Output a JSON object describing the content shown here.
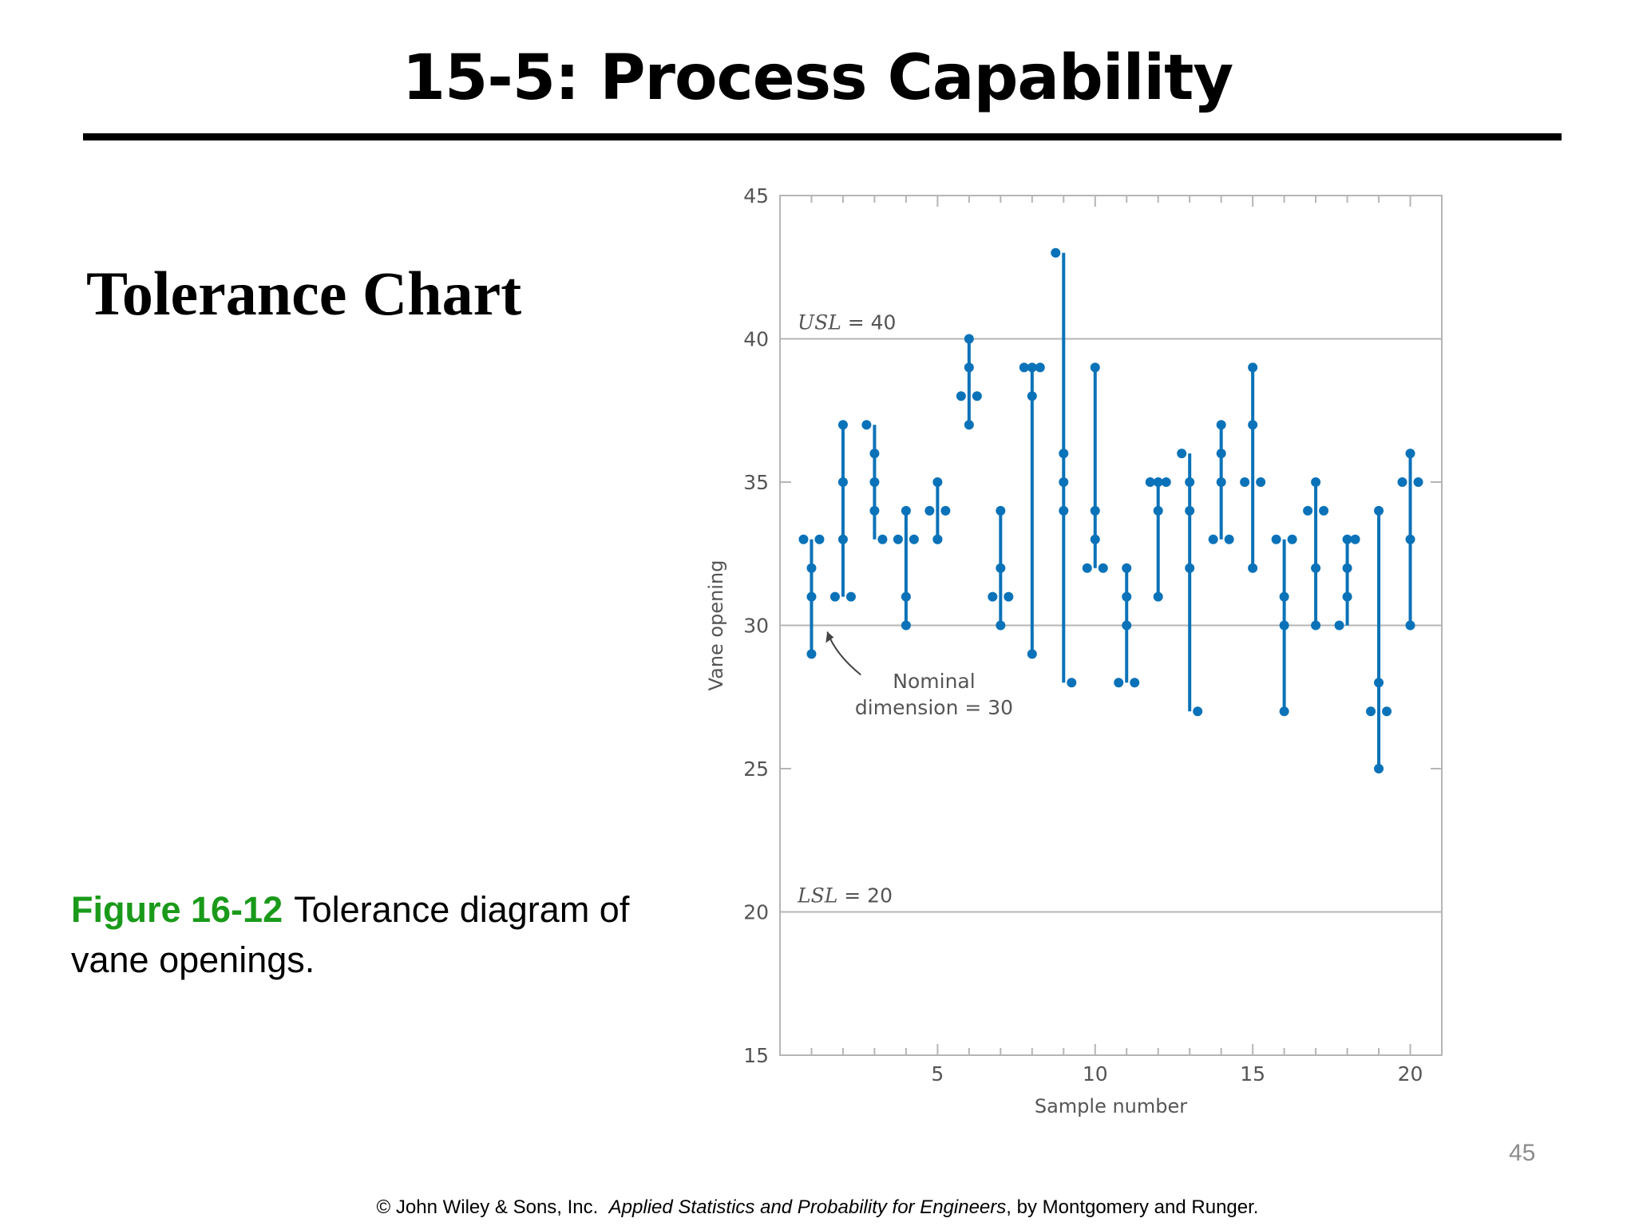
{
  "slide": {
    "title": "15-5: Process Capability",
    "subtitle": "Tolerance Chart",
    "caption_label": "Figure 16-12",
    "caption_text": "Tolerance diagram of vane openings.",
    "page_number": "45",
    "footer_prefix": "© John Wiley & Sons, Inc.",
    "footer_book": "Applied Statistics and Probability for Engineers",
    "footer_suffix": ", by Montgomery and Runger."
  },
  "chart_data": {
    "type": "scatter",
    "xlabel": "Sample number",
    "ylabel": "Vane opening",
    "xlim": [
      0,
      21
    ],
    "ylim": [
      15,
      45
    ],
    "x_ticks": [
      5,
      10,
      15,
      20
    ],
    "y_ticks": [
      15,
      20,
      25,
      30,
      35,
      40,
      45
    ],
    "grid": false,
    "reference_lines": [
      {
        "value": 40,
        "label_var": "USL",
        "label_eq": " = 40"
      },
      {
        "value": 30,
        "label_var": "",
        "label_eq": ""
      },
      {
        "value": 20,
        "label_var": "LSL",
        "label_eq": " = 20"
      }
    ],
    "annotation": {
      "line1": "Nominal",
      "line2": "dimension = 30",
      "target_x": 1.4,
      "target_y": 30
    },
    "colors": {
      "series": "#0a72b8",
      "reference": "#b5b5b5",
      "axis": "#b5b5b5",
      "text": "#555555"
    },
    "samples": [
      {
        "x": 1,
        "values": [
          33,
          32,
          31,
          29,
          33
        ]
      },
      {
        "x": 2,
        "values": [
          31,
          37,
          35,
          33,
          31
        ]
      },
      {
        "x": 3,
        "values": [
          37,
          36,
          35,
          34,
          33
        ]
      },
      {
        "x": 4,
        "values": [
          33,
          34,
          31,
          30,
          33
        ]
      },
      {
        "x": 5,
        "values": [
          34,
          35,
          33,
          33,
          34
        ]
      },
      {
        "x": 6,
        "values": [
          38,
          40,
          39,
          37,
          38
        ]
      },
      {
        "x": 7,
        "values": [
          31,
          34,
          32,
          30,
          31
        ]
      },
      {
        "x": 8,
        "values": [
          39,
          39,
          38,
          29,
          39
        ]
      },
      {
        "x": 9,
        "values": [
          43,
          36,
          35,
          34,
          28
        ]
      },
      {
        "x": 10,
        "values": [
          32,
          39,
          34,
          33,
          32
        ]
      },
      {
        "x": 11,
        "values": [
          28,
          32,
          31,
          30,
          28
        ]
      },
      {
        "x": 12,
        "values": [
          35,
          35,
          34,
          31,
          35
        ]
      },
      {
        "x": 13,
        "values": [
          36,
          35,
          34,
          32,
          27
        ]
      },
      {
        "x": 14,
        "values": [
          33,
          37,
          36,
          35,
          33
        ]
      },
      {
        "x": 15,
        "values": [
          35,
          39,
          37,
          32,
          35
        ]
      },
      {
        "x": 16,
        "values": [
          33,
          31,
          30,
          27,
          33
        ]
      },
      {
        "x": 17,
        "values": [
          34,
          35,
          32,
          30,
          34
        ]
      },
      {
        "x": 18,
        "values": [
          30,
          33,
          32,
          31,
          33
        ]
      },
      {
        "x": 19,
        "values": [
          27,
          34,
          28,
          25,
          27
        ]
      },
      {
        "x": 20,
        "values": [
          35,
          36,
          33,
          30,
          35
        ]
      }
    ]
  }
}
